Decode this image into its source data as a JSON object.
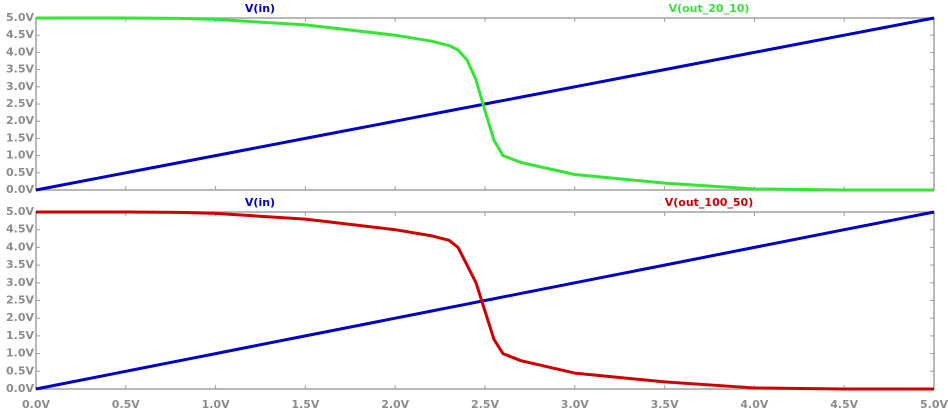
{
  "chart_data": [
    {
      "type": "line",
      "x": [
        0,
        0.5,
        0.8,
        1.0,
        1.5,
        2.0,
        2.2,
        2.3,
        2.35,
        2.4,
        2.45,
        2.5,
        2.55,
        2.6,
        2.7,
        3.0,
        3.5,
        4.0,
        4.5,
        5.0
      ],
      "series": [
        {
          "name": "V(in)",
          "color": "#0000c8",
          "values": [
            0,
            0.5,
            0.8,
            1.0,
            1.5,
            2.0,
            2.2,
            2.3,
            2.35,
            2.4,
            2.45,
            2.5,
            2.55,
            2.6,
            2.7,
            3.0,
            3.5,
            4.0,
            4.5,
            5.0
          ]
        },
        {
          "name": "V(out_20_10)",
          "color": "#33e633",
          "values": [
            5.0,
            5.0,
            4.99,
            4.96,
            4.8,
            4.5,
            4.33,
            4.2,
            4.07,
            3.78,
            3.2,
            2.3,
            1.45,
            1.0,
            0.8,
            0.45,
            0.2,
            0.03,
            0,
            0
          ]
        }
      ],
      "ylim": [
        0,
        5
      ],
      "yticks": [
        {
          "value": 0,
          "label": "0.0V"
        },
        {
          "value": 0.5,
          "label": "0.5V"
        },
        {
          "value": 1,
          "label": "1.0V"
        },
        {
          "value": 1.5,
          "label": "1.5V"
        },
        {
          "value": 2,
          "label": "2.0V"
        },
        {
          "value": 2.5,
          "label": "2.5V"
        },
        {
          "value": 3,
          "label": "3.0V"
        },
        {
          "value": 3.5,
          "label": "3.5V"
        },
        {
          "value": 4,
          "label": "4.0V"
        },
        {
          "value": 4.5,
          "label": "4.5V"
        },
        {
          "value": 5,
          "label": "5.0V"
        }
      ],
      "xlim": [
        0,
        5
      ]
    },
    {
      "type": "line",
      "x": [
        0,
        0.5,
        0.8,
        1.0,
        1.5,
        2.0,
        2.2,
        2.3,
        2.35,
        2.4,
        2.45,
        2.5,
        2.55,
        2.6,
        2.7,
        3.0,
        3.5,
        4.0,
        4.5,
        5.0
      ],
      "series": [
        {
          "name": "V(in)",
          "color": "#0000c8",
          "values": [
            0,
            0.5,
            0.8,
            1.0,
            1.5,
            2.0,
            2.2,
            2.3,
            2.35,
            2.4,
            2.45,
            2.5,
            2.55,
            2.6,
            2.7,
            3.0,
            3.5,
            4.0,
            4.5,
            5.0
          ]
        },
        {
          "name": "V(out_100_50)",
          "color": "#d00000",
          "values": [
            5.0,
            5.0,
            4.99,
            4.96,
            4.8,
            4.5,
            4.33,
            4.2,
            4.0,
            3.5,
            3.0,
            2.2,
            1.4,
            1.0,
            0.8,
            0.45,
            0.2,
            0.03,
            0,
            0
          ]
        }
      ],
      "ylim": [
        0,
        5
      ],
      "yticks": [
        {
          "value": 0,
          "label": "0.0V"
        },
        {
          "value": 0.5,
          "label": "0.5V"
        },
        {
          "value": 1,
          "label": "1.0V"
        },
        {
          "value": 1.5,
          "label": "1.5V"
        },
        {
          "value": 2,
          "label": "2.0V"
        },
        {
          "value": 2.5,
          "label": "2.5V"
        },
        {
          "value": 3,
          "label": "3.0V"
        },
        {
          "value": 3.5,
          "label": "3.5V"
        },
        {
          "value": 4,
          "label": "4.0V"
        },
        {
          "value": 4.5,
          "label": "4.5V"
        },
        {
          "value": 5,
          "label": "5.0V"
        }
      ],
      "xlim": [
        0,
        5
      ],
      "xticks": [
        {
          "value": 0,
          "label": "0.0V"
        },
        {
          "value": 0.5,
          "label": "0.5V"
        },
        {
          "value": 1,
          "label": "1.0V"
        },
        {
          "value": 1.5,
          "label": "1.5V"
        },
        {
          "value": 2,
          "label": "2.0V"
        },
        {
          "value": 2.5,
          "label": "2.5V"
        },
        {
          "value": 3,
          "label": "3.0V"
        },
        {
          "value": 3.5,
          "label": "3.5V"
        },
        {
          "value": 4,
          "label": "4.0V"
        },
        {
          "value": 4.5,
          "label": "4.5V"
        },
        {
          "value": 5,
          "label": "5.0V"
        }
      ]
    }
  ]
}
